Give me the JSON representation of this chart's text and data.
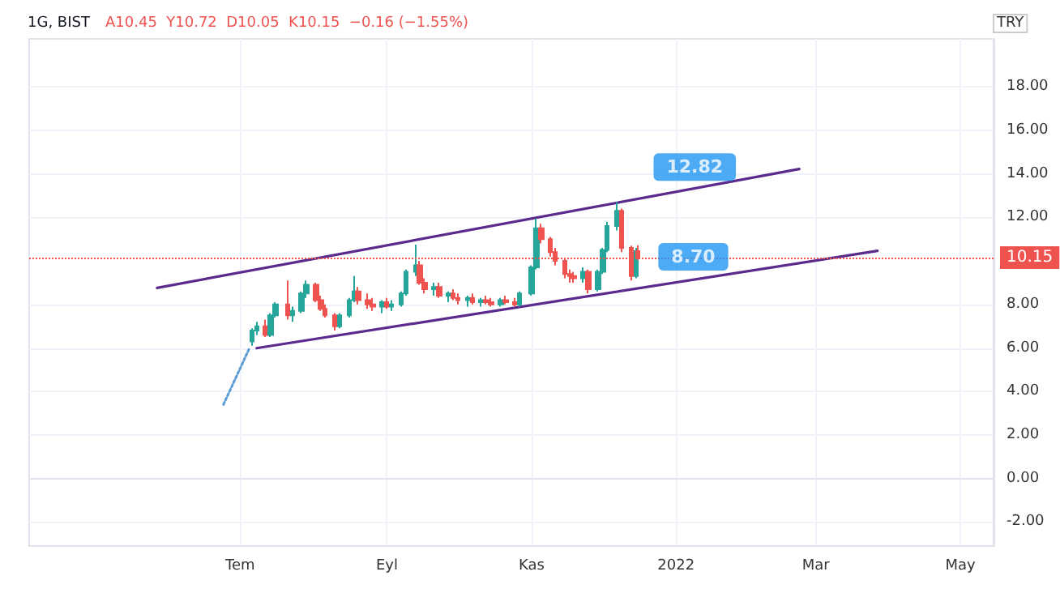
{
  "chart_data": {
    "type": "candlestick",
    "title": "1G, BIST",
    "subtitle": "A10.45  Y10.72  D10.05  K10.15  −0.16 (−1.55%)",
    "ylabel": "TRY",
    "x": [
      "2021-07-06",
      "2021-07-08",
      "2021-07-12",
      "2021-07-14",
      "2021-07-16",
      "2021-07-21",
      "2021-07-23",
      "2021-07-27",
      "2021-07-29",
      "2021-08-02",
      "2021-08-04",
      "2021-08-06",
      "2021-08-10",
      "2021-08-12",
      "2021-08-16",
      "2021-08-18",
      "2021-08-20",
      "2021-08-24",
      "2021-08-26",
      "2021-08-30",
      "2021-09-01",
      "2021-09-03",
      "2021-09-07",
      "2021-09-09",
      "2021-09-13",
      "2021-09-15",
      "2021-09-17",
      "2021-09-21",
      "2021-09-23",
      "2021-09-27",
      "2021-09-29",
      "2021-10-01",
      "2021-10-05",
      "2021-10-07",
      "2021-10-11",
      "2021-10-13",
      "2021-10-15",
      "2021-10-19",
      "2021-10-21",
      "2021-10-25",
      "2021-10-27",
      "2021-11-01",
      "2021-11-03",
      "2021-11-05",
      "2021-11-09",
      "2021-11-11",
      "2021-11-15",
      "2021-11-17",
      "2021-11-19",
      "2021-11-23",
      "2021-11-25",
      "2021-11-29",
      "2021-12-01",
      "2021-12-03",
      "2021-12-07",
      "2021-12-09",
      "2021-12-13",
      "2021-12-15",
      "2021-12-16"
    ],
    "ohlc": [
      [
        6.3,
        6.9,
        6.1,
        6.8
      ],
      [
        6.8,
        7.2,
        6.6,
        7.0
      ],
      [
        7.0,
        7.3,
        6.5,
        6.6
      ],
      [
        6.6,
        7.6,
        6.5,
        7.5
      ],
      [
        7.5,
        8.1,
        7.4,
        8.0
      ],
      [
        8.0,
        9.1,
        7.3,
        7.5
      ],
      [
        7.5,
        7.9,
        7.2,
        7.7
      ],
      [
        7.7,
        8.6,
        7.6,
        8.5
      ],
      [
        8.5,
        9.1,
        8.3,
        8.9
      ],
      [
        8.9,
        9.0,
        8.1,
        8.2
      ],
      [
        8.2,
        8.4,
        7.7,
        7.8
      ],
      [
        7.8,
        8.0,
        7.4,
        7.5
      ],
      [
        7.5,
        7.6,
        6.8,
        7.0
      ],
      [
        7.0,
        7.6,
        6.9,
        7.5
      ],
      [
        7.5,
        8.3,
        7.4,
        8.2
      ],
      [
        8.2,
        9.3,
        8.1,
        8.6
      ],
      [
        8.6,
        8.8,
        8.0,
        8.2
      ],
      [
        8.2,
        8.5,
        7.8,
        8.0
      ],
      [
        8.0,
        8.3,
        7.7,
        7.9
      ],
      [
        7.9,
        8.2,
        7.6,
        8.1
      ],
      [
        8.1,
        8.3,
        7.8,
        7.9
      ],
      [
        7.9,
        8.2,
        7.7,
        8.0
      ],
      [
        8.0,
        8.6,
        7.9,
        8.5
      ],
      [
        8.5,
        9.6,
        8.4,
        9.5
      ],
      [
        9.5,
        10.75,
        9.3,
        9.8
      ],
      [
        9.8,
        10.0,
        8.9,
        9.0
      ],
      [
        9.0,
        9.2,
        8.5,
        8.7
      ],
      [
        8.7,
        9.0,
        8.4,
        8.8
      ],
      [
        8.8,
        9.0,
        8.3,
        8.4
      ],
      [
        8.4,
        8.6,
        8.1,
        8.5
      ],
      [
        8.5,
        8.7,
        8.2,
        8.3
      ],
      [
        8.3,
        8.5,
        8.0,
        8.2
      ],
      [
        8.2,
        8.4,
        7.9,
        8.3
      ],
      [
        8.3,
        8.5,
        8.0,
        8.1
      ],
      [
        8.1,
        8.3,
        7.9,
        8.2
      ],
      [
        8.2,
        8.4,
        8.0,
        8.1
      ],
      [
        8.1,
        8.3,
        7.9,
        8.0
      ],
      [
        8.0,
        8.3,
        7.9,
        8.2
      ],
      [
        8.2,
        8.4,
        8.0,
        8.1
      ],
      [
        8.1,
        8.3,
        7.9,
        8.0
      ],
      [
        8.0,
        8.6,
        7.9,
        8.5
      ],
      [
        8.5,
        9.8,
        8.4,
        9.7
      ],
      [
        9.7,
        11.95,
        9.6,
        11.5
      ],
      [
        11.5,
        11.7,
        10.8,
        11.0
      ],
      [
        11.0,
        11.1,
        10.2,
        10.4
      ],
      [
        10.4,
        10.6,
        9.8,
        10.0
      ],
      [
        10.0,
        10.1,
        9.2,
        9.4
      ],
      [
        9.4,
        9.6,
        9.0,
        9.3
      ],
      [
        9.3,
        9.5,
        9.0,
        9.2
      ],
      [
        9.2,
        9.7,
        9.0,
        9.5
      ],
      [
        9.5,
        9.6,
        8.5,
        8.7
      ],
      [
        8.7,
        9.6,
        8.6,
        9.5
      ],
      [
        9.5,
        10.6,
        9.4,
        10.5
      ],
      [
        10.5,
        11.8,
        10.4,
        11.6
      ],
      [
        11.6,
        12.7,
        11.4,
        12.3
      ],
      [
        12.3,
        12.4,
        10.4,
        10.6
      ],
      [
        10.6,
        10.7,
        9.1,
        9.3
      ],
      [
        9.3,
        10.6,
        9.2,
        10.45
      ],
      [
        10.45,
        10.72,
        10.05,
        10.15
      ]
    ],
    "series": [
      {
        "type": "line",
        "color": "#5b2a8c",
        "line_style": "solid",
        "x": [
          "2021-05-27",
          "2022-02-22"
        ],
        "values": [
          8.76,
          14.22
        ]
      },
      {
        "type": "line",
        "color": "#5b2a8c",
        "line_style": "solid",
        "x": [
          "2021-07-08",
          "2022-03-27"
        ],
        "values": [
          5.99,
          10.46
        ]
      },
      {
        "type": "line",
        "color": "#5b9bd5",
        "line_style": "dotted",
        "x": [
          "2021-06-24",
          "2021-07-05"
        ],
        "values": [
          3.4,
          6.0
        ]
      }
    ],
    "xlim": [
      "2021-04-03",
      "2022-05-15"
    ],
    "xticks": [
      {
        "value": "2021-07-01",
        "label": "Tem"
      },
      {
        "value": "2021-09-01",
        "label": "Eyl"
      },
      {
        "value": "2021-11-01",
        "label": "Kas"
      },
      {
        "value": "2022-01-01",
        "label": "2022"
      },
      {
        "value": "2022-03-01",
        "label": "Mar"
      },
      {
        "value": "2022-05-01",
        "label": "May"
      }
    ],
    "ylim": [
      -3.1,
      20.2
    ],
    "yticks": [
      {
        "value": -2,
        "label": "-2.00"
      },
      {
        "value": 0,
        "label": "0.00"
      },
      {
        "value": 2,
        "label": "2.00"
      },
      {
        "value": 4,
        "label": "4.00"
      },
      {
        "value": 6,
        "label": "6.00"
      },
      {
        "value": 8,
        "label": "8.00"
      },
      {
        "value": 12,
        "label": "12.00"
      },
      {
        "value": 14,
        "label": "14.00"
      },
      {
        "value": 16,
        "label": "16.00"
      },
      {
        "value": 18,
        "label": "18.00"
      }
    ],
    "ref_lines": [
      {
        "axis": "y",
        "value": 10.15,
        "label": "10.15",
        "color": "#ef5350",
        "line_style": "dotted"
      }
    ],
    "annotations": [
      {
        "text": "12.82",
        "x": "2021-12-15",
        "y": 12.82
      },
      {
        "text": "8.70",
        "x": "2021-12-17",
        "y": 8.7
      }
    ],
    "grid": true,
    "marker": "none"
  }
}
